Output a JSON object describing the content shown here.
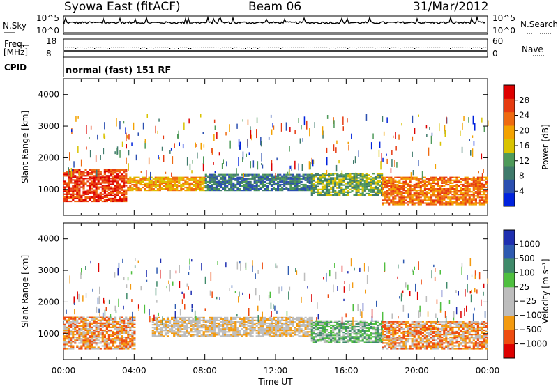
{
  "header": {
    "station": "Syowa East (fitACF)",
    "beam": "Beam 06",
    "date": "31/Mar/2012"
  },
  "strips": {
    "nsky_label": "N.Sky",
    "nsky_top": "10^5",
    "nsky_bot": "10^0",
    "nsearch_label": "N.Search",
    "nsearch_top": "10^5",
    "nsearch_bot": "10^0",
    "freq_label_1": "Freq.",
    "freq_label_2": "[MHz]",
    "freq_top": "18",
    "freq_bot": "8",
    "nave_label": "Nave",
    "nave_top": "60",
    "nave_bot": "0",
    "cpid_label": "CPID",
    "cpid_text": "normal (fast) 151 RF"
  },
  "colors": {
    "power": [
      "#0022dd",
      "#2b4fb0",
      "#3f7a6b",
      "#4e9a5a",
      "#d9c300",
      "#f3a200",
      "#ee6a10",
      "#e63a10",
      "#dd0000"
    ],
    "velocity": [
      "#dd0000",
      "#ee4c10",
      "#f39a10",
      "#bdbdbd",
      "#bdbdbd",
      "#4fbf3f",
      "#3f8a6a",
      "#2e5ab0",
      "#1f2fb0"
    ]
  },
  "chart_data": [
    {
      "type": "heatmap",
      "name": "power",
      "ylabel": "Slant Range [km]",
      "ylim": [
        180,
        4500
      ],
      "xlim": [
        0,
        24
      ],
      "yticks": [
        1000,
        2000,
        3000,
        4000
      ],
      "colorbar_label": "Power [dB]",
      "colorbar_ticks": [
        "4",
        "8",
        "12",
        "16",
        "20",
        "24",
        "28"
      ],
      "bands": [
        {
          "t": [
            0.0,
            3.6
          ],
          "r": [
            600,
            1600
          ],
          "level": 7
        },
        {
          "t": [
            3.6,
            8.0
          ],
          "r": [
            950,
            1400
          ],
          "level": 5
        },
        {
          "t": [
            8.0,
            14.0
          ],
          "r": [
            950,
            1450
          ],
          "level": 2
        },
        {
          "t": [
            14.0,
            18.0
          ],
          "r": [
            800,
            1500
          ],
          "level": 3
        },
        {
          "t": [
            18.0,
            24.0
          ],
          "r": [
            500,
            1400
          ],
          "level": 6
        }
      ]
    },
    {
      "type": "heatmap",
      "name": "velocity",
      "ylabel": "Slant Range [km]",
      "ylim": [
        180,
        4500
      ],
      "xlim": [
        0,
        24
      ],
      "yticks": [
        1000,
        2000,
        3000,
        4000
      ],
      "xticks": [
        "00:00",
        "04:00",
        "08:00",
        "12:00",
        "16:00",
        "20:00",
        "00:00"
      ],
      "xlabel": "Time UT",
      "colorbar_label": "Velocity [m s⁻¹]",
      "colorbar_ticks": [
        "1000",
        "500",
        "100",
        "25",
        "−25",
        "−100",
        "−500",
        "−1000"
      ],
      "bands": [
        {
          "t": [
            0.0,
            4.0
          ],
          "r": [
            500,
            1500
          ],
          "level": 2
        },
        {
          "t": [
            5.0,
            14.0
          ],
          "r": [
            900,
            1500
          ],
          "level": 3
        },
        {
          "t": [
            14.0,
            18.0
          ],
          "r": [
            700,
            1400
          ],
          "level": 5
        },
        {
          "t": [
            18.0,
            24.0
          ],
          "r": [
            500,
            1400
          ],
          "level": 2
        }
      ]
    }
  ]
}
